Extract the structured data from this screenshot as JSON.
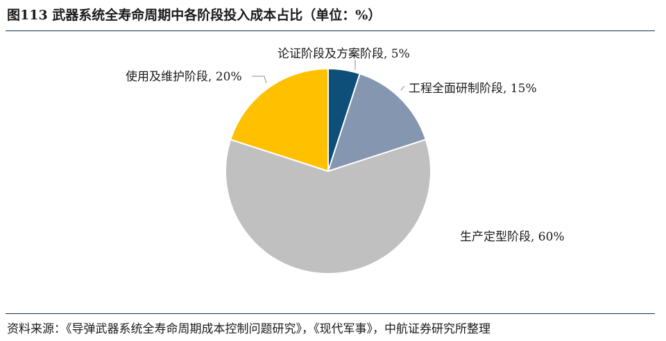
{
  "figure": {
    "title": "图113  武器系统全寿命周期中各阶段投入成本占比（单位：%）",
    "source": "资料来源：《导弹武器系统全寿命周期成本控制问题研究》，《现代军事》，中航证券研究所整理"
  },
  "chart_data": {
    "type": "pie",
    "title": "图113  武器系统全寿命周期中各阶段投入成本占比（单位：%）",
    "unit": "%",
    "start_angle": "12 o'clock",
    "direction": "clockwise",
    "legend": "none",
    "slices": [
      {
        "label": "论证阶段及方案阶段, 5%",
        "name": "论证阶段及方案阶段",
        "value": 5,
        "color": "#0d4f78"
      },
      {
        "label": "工程全面研制阶段, 15%",
        "name": "工程全面研制阶段",
        "value": 15,
        "color": "#8496b0"
      },
      {
        "label": "生产定型阶段, 60%",
        "name": "生产定型阶段",
        "value": 60,
        "color": "#c0c0c0"
      },
      {
        "label": "使用及维护阶段, 20%",
        "name": "使用及维护阶段",
        "value": 20,
        "color": "#ffc000"
      }
    ]
  }
}
